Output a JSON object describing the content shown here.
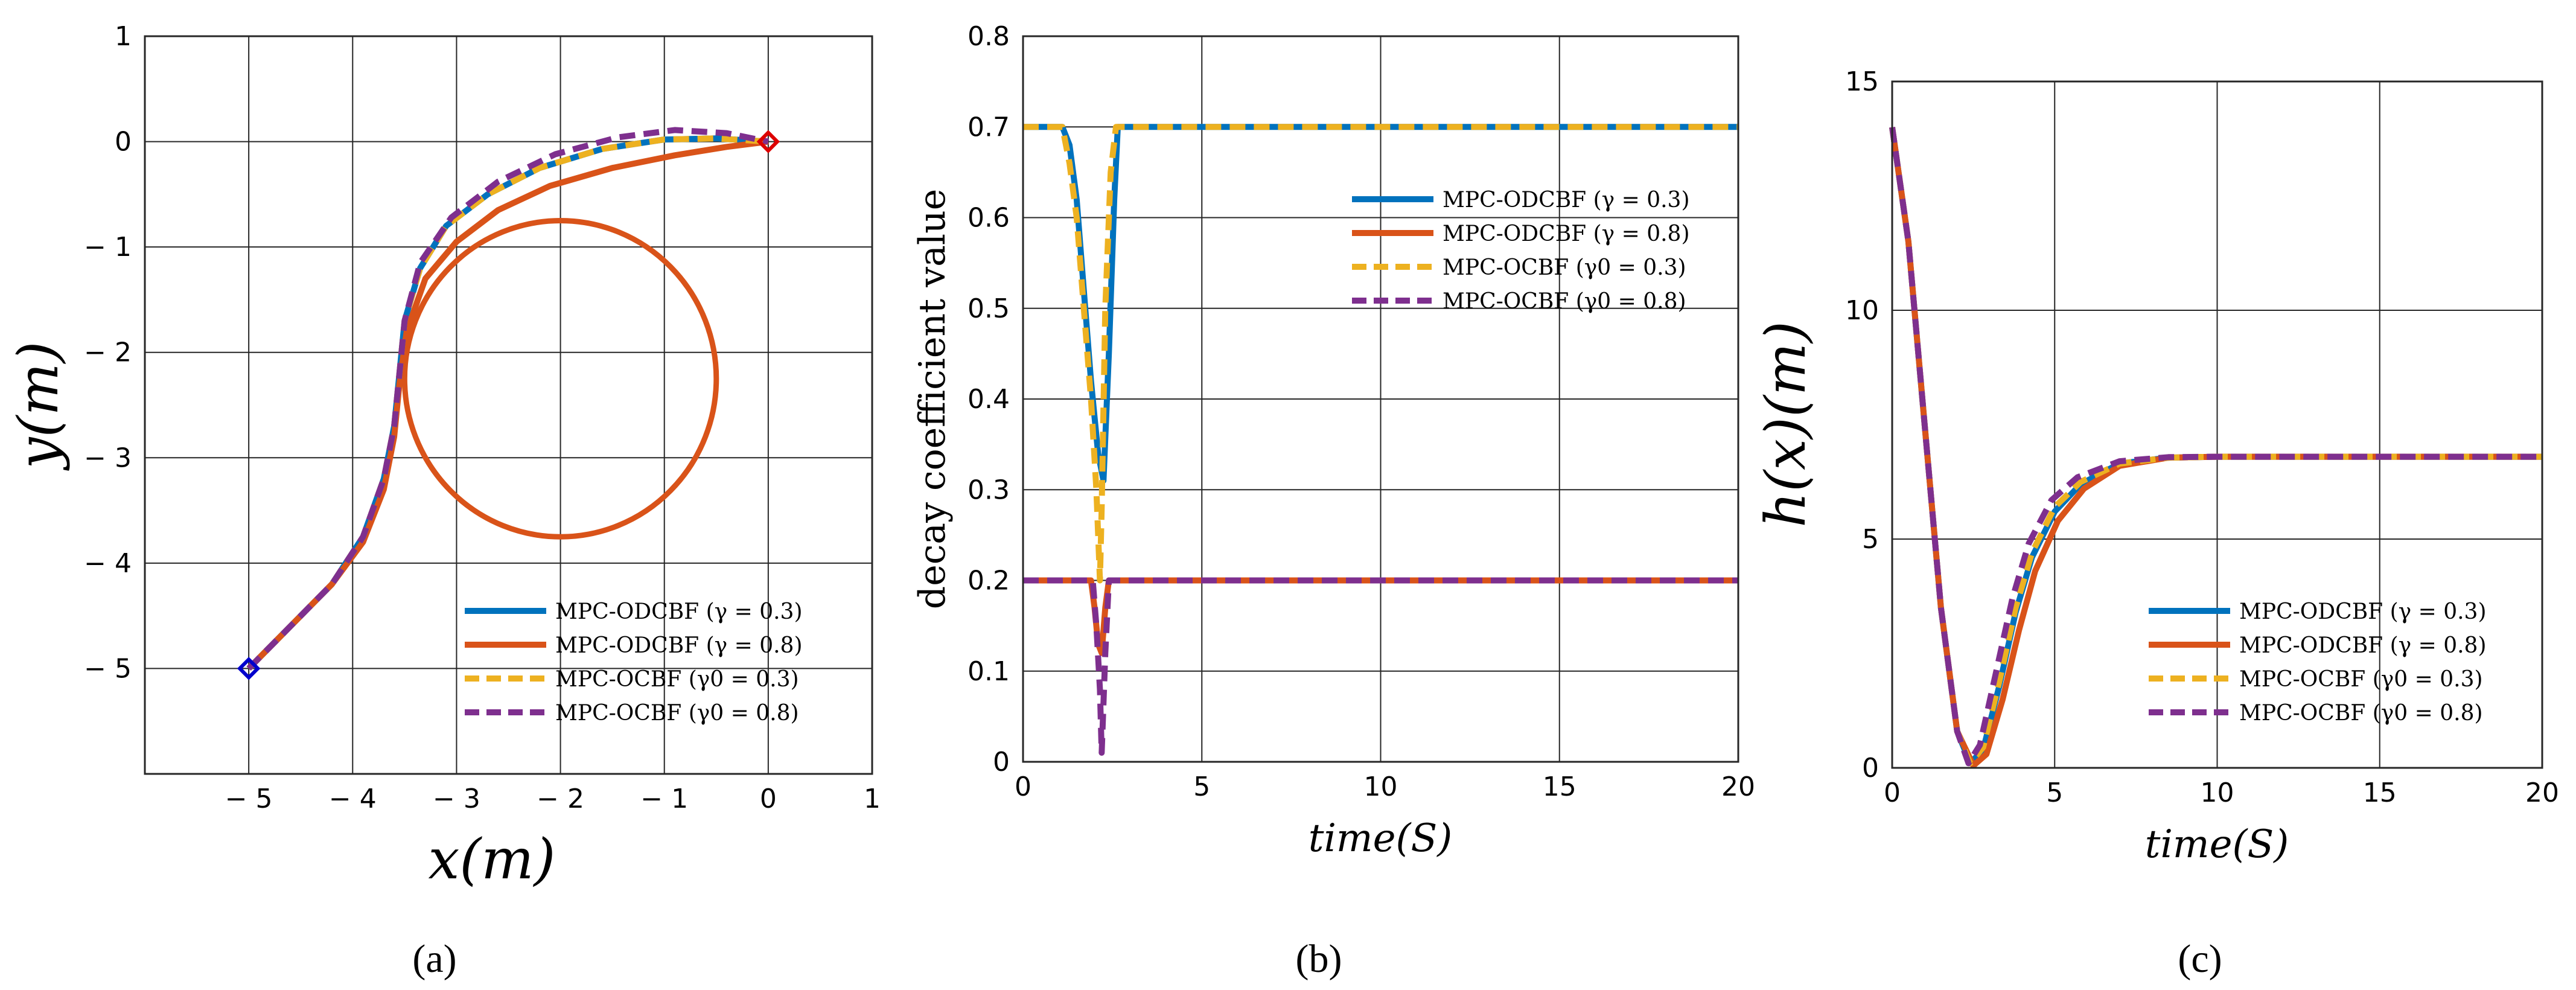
{
  "chart_data": [
    {
      "panel": "a",
      "caption": "(a)",
      "type": "line",
      "xlabel": "x(m)",
      "ylabel": "y(m)",
      "xlim": [
        -6,
        1
      ],
      "ylim": [
        -6,
        1
      ],
      "xticks": [
        -5,
        -4,
        -3,
        -2,
        -1,
        0,
        1
      ],
      "yticks": [
        1,
        0,
        -1,
        -2,
        -3,
        -4,
        -5
      ],
      "grid": true,
      "legend_position": "bottom-right",
      "start_marker": {
        "x": -5,
        "y": -5,
        "color": "#0000cc"
      },
      "goal_marker": {
        "x": 0,
        "y": 0,
        "color": "#dd0000"
      },
      "obstacle": {
        "type": "circle",
        "center": [
          -2,
          -2.25
        ],
        "radius": 1.5,
        "color": "#d95319"
      },
      "series": [
        {
          "name": "MPC-ODCBF (γ = 0.3)",
          "color": "#0072bd",
          "style": "solid",
          "x": [
            -5,
            -4.6,
            -4.2,
            -3.9,
            -3.7,
            -3.6,
            -3.55,
            -3.5,
            -3.35,
            -3.1,
            -2.7,
            -2.2,
            -1.6,
            -1.0,
            -0.5,
            0
          ],
          "y": [
            -5,
            -4.6,
            -4.2,
            -3.75,
            -3.2,
            -2.7,
            -2.2,
            -1.7,
            -1.2,
            -0.8,
            -0.5,
            -0.25,
            -0.07,
            0.02,
            0.03,
            0
          ]
        },
        {
          "name": "MPC-ODCBF (γ = 0.8)",
          "color": "#d95319",
          "style": "solid",
          "x": [
            -5,
            -4.6,
            -4.2,
            -3.9,
            -3.7,
            -3.6,
            -3.55,
            -3.48,
            -3.3,
            -3.0,
            -2.6,
            -2.1,
            -1.5,
            -0.9,
            -0.4,
            0
          ],
          "y": [
            -5,
            -4.6,
            -4.2,
            -3.8,
            -3.3,
            -2.8,
            -2.3,
            -1.8,
            -1.3,
            -0.95,
            -0.65,
            -0.42,
            -0.25,
            -0.13,
            -0.05,
            0
          ]
        },
        {
          "name": "MPC-OCBF (γ0 = 0.3)",
          "color": "#edb120",
          "style": "dashed",
          "x": [
            -5,
            -4.6,
            -4.2,
            -3.9,
            -3.7,
            -3.6,
            -3.55,
            -3.5,
            -3.35,
            -3.1,
            -2.7,
            -2.2,
            -1.6,
            -1.0,
            -0.5,
            0
          ],
          "y": [
            -5,
            -4.6,
            -4.2,
            -3.75,
            -3.2,
            -2.7,
            -2.2,
            -1.7,
            -1.2,
            -0.8,
            -0.5,
            -0.25,
            -0.07,
            0.02,
            0.03,
            0
          ]
        },
        {
          "name": "MPC-OCBF (γ0 = 0.8)",
          "color": "#7e2f8e",
          "style": "dashed",
          "x": [
            -5,
            -4.6,
            -4.2,
            -3.9,
            -3.7,
            -3.6,
            -3.55,
            -3.5,
            -3.35,
            -3.05,
            -2.6,
            -2.05,
            -1.45,
            -0.9,
            -0.4,
            0
          ],
          "y": [
            -5,
            -4.6,
            -4.2,
            -3.75,
            -3.2,
            -2.7,
            -2.2,
            -1.7,
            -1.15,
            -0.72,
            -0.38,
            -0.12,
            0.04,
            0.11,
            0.08,
            0
          ]
        }
      ]
    },
    {
      "panel": "b",
      "caption": "(b)",
      "type": "line",
      "xlabel": "time(S)",
      "ylabel": "decay coefficient value",
      "xlim": [
        0,
        20
      ],
      "ylim": [
        0,
        0.8
      ],
      "xticks": [
        0,
        5,
        10,
        15,
        20
      ],
      "yticks": [
        0.8,
        0.7,
        0.6,
        0.5,
        0.4,
        0.3,
        0.2,
        0.1,
        0
      ],
      "grid": true,
      "legend_position": "upper-right",
      "series": [
        {
          "name": "MPC-ODCBF (γ = 0.3)",
          "color": "#0072bd",
          "style": "solid",
          "x": [
            0,
            1.1,
            1.3,
            1.5,
            1.7,
            1.9,
            2.1,
            2.25,
            2.4,
            2.55,
            2.65,
            20
          ],
          "y": [
            0.7,
            0.7,
            0.68,
            0.62,
            0.52,
            0.42,
            0.34,
            0.31,
            0.45,
            0.62,
            0.7,
            0.7
          ]
        },
        {
          "name": "MPC-ODCBF (γ = 0.8)",
          "color": "#d95319",
          "style": "solid",
          "x": [
            0,
            1.9,
            2.0,
            2.1,
            2.2,
            2.3,
            2.4,
            20
          ],
          "y": [
            0.2,
            0.2,
            0.17,
            0.13,
            0.12,
            0.17,
            0.2,
            0.2
          ]
        },
        {
          "name": "MPC-OCBF (γ0 = 0.3)",
          "color": "#edb120",
          "style": "dashed",
          "x": [
            0,
            1.1,
            1.3,
            1.5,
            1.7,
            1.9,
            2.05,
            2.15,
            2.2,
            2.3,
            2.45,
            2.6,
            20
          ],
          "y": [
            0.7,
            0.7,
            0.66,
            0.6,
            0.5,
            0.4,
            0.3,
            0.2,
            0.28,
            0.5,
            0.65,
            0.7,
            0.7
          ]
        },
        {
          "name": "MPC-OCBF (γ0 = 0.8)",
          "color": "#7e2f8e",
          "style": "dashed",
          "x": [
            0,
            1.95,
            2.05,
            2.15,
            2.2,
            2.3,
            2.4,
            20
          ],
          "y": [
            0.2,
            0.2,
            0.15,
            0.08,
            0.01,
            0.12,
            0.2,
            0.2
          ]
        }
      ]
    },
    {
      "panel": "c",
      "caption": "(c)",
      "type": "line",
      "xlabel": "time(S)",
      "ylabel": "h(x)(m)",
      "xlim": [
        0,
        20
      ],
      "ylim": [
        0,
        15
      ],
      "xticks": [
        0,
        5,
        10,
        15,
        20
      ],
      "yticks": [
        15,
        10,
        5,
        0
      ],
      "grid": true,
      "legend_position": "bottom-right",
      "series": [
        {
          "name": "MPC-ODCBF (γ = 0.3)",
          "color": "#0072bd",
          "style": "solid",
          "x": [
            0,
            0.5,
            1,
            1.5,
            2,
            2.4,
            2.8,
            3.3,
            3.8,
            4.3,
            5,
            5.8,
            7,
            8.5,
            10,
            15,
            20
          ],
          "y": [
            14,
            11.5,
            7.5,
            3.5,
            0.8,
            0.1,
            0.4,
            1.8,
            3.4,
            4.6,
            5.6,
            6.2,
            6.65,
            6.78,
            6.8,
            6.8,
            6.8
          ]
        },
        {
          "name": "MPC-ODCBF (γ = 0.8)",
          "color": "#d95319",
          "style": "solid",
          "x": [
            0,
            0.5,
            1,
            1.5,
            2,
            2.5,
            2.9,
            3.4,
            3.9,
            4.4,
            5.1,
            5.9,
            7,
            8.5,
            10,
            15,
            20
          ],
          "y": [
            14,
            11.5,
            7.5,
            3.5,
            0.8,
            0.05,
            0.3,
            1.5,
            3.0,
            4.3,
            5.4,
            6.1,
            6.6,
            6.78,
            6.8,
            6.8,
            6.8
          ]
        },
        {
          "name": "MPC-OCBF (γ0 = 0.3)",
          "color": "#edb120",
          "style": "dashed",
          "x": [
            0,
            0.5,
            1,
            1.5,
            2,
            2.4,
            2.8,
            3.3,
            3.8,
            4.3,
            5,
            5.8,
            7,
            8.5,
            10,
            15,
            20
          ],
          "y": [
            14,
            11.5,
            7.5,
            3.5,
            0.8,
            0.1,
            0.45,
            1.9,
            3.5,
            4.7,
            5.7,
            6.25,
            6.65,
            6.78,
            6.8,
            6.8,
            6.8
          ]
        },
        {
          "name": "MPC-OCBF (γ0 = 0.8)",
          "color": "#7e2f8e",
          "style": "dashed",
          "x": [
            0,
            0.5,
            1,
            1.5,
            2,
            2.35,
            2.7,
            3.2,
            3.7,
            4.2,
            4.9,
            5.7,
            7,
            8.5,
            10,
            15,
            20
          ],
          "y": [
            14,
            11.5,
            7.5,
            3.5,
            0.8,
            0.1,
            0.5,
            2.1,
            3.7,
            4.9,
            5.85,
            6.35,
            6.7,
            6.79,
            6.8,
            6.8,
            6.8
          ]
        }
      ]
    }
  ]
}
